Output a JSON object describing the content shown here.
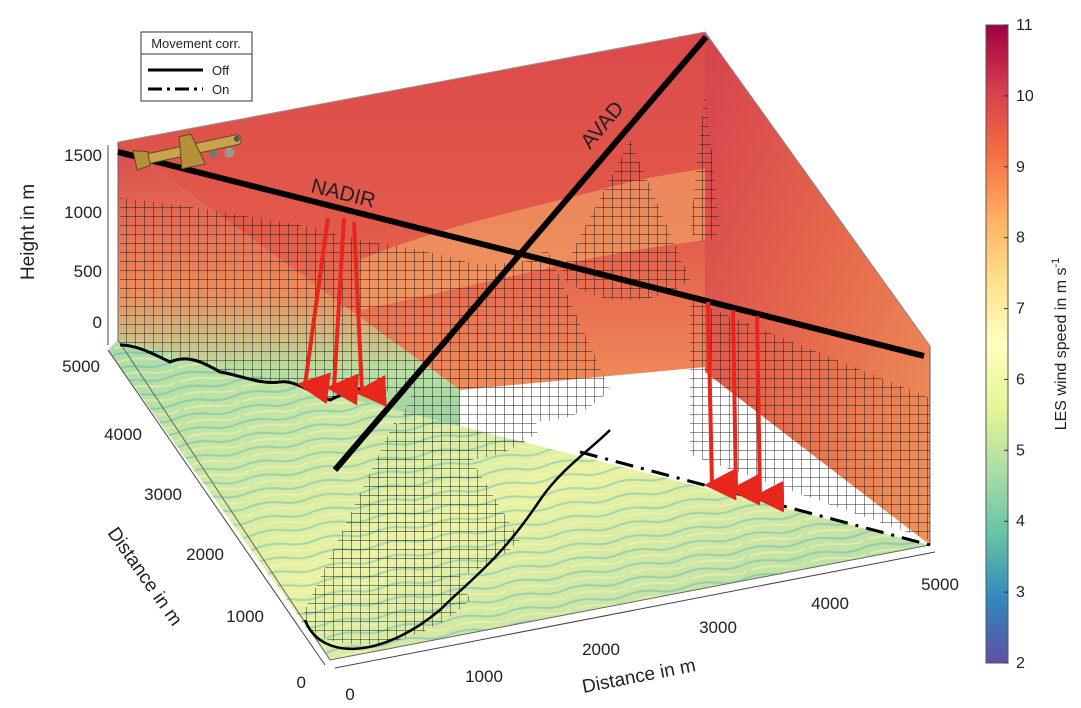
{
  "chart_data": {
    "type": "3d-surface",
    "legend": {
      "title": "Movement corr.",
      "entries": [
        {
          "label": "Off",
          "style": "solid"
        },
        {
          "label": "On",
          "style": "dash-dot"
        }
      ],
      "placement": "top-left"
    },
    "beam_labels": [
      "NADIR",
      "AVAD"
    ],
    "z_axis": {
      "label": "Height in m",
      "ticks": [
        "0",
        "500",
        "1000",
        "1500"
      ],
      "range": [
        0,
        1700
      ]
    },
    "y_axis": {
      "label": "Distance in m",
      "ticks": [
        "0",
        "1000",
        "2000",
        "3000",
        "4000",
        "5000"
      ],
      "range": [
        0,
        5000
      ]
    },
    "x_axis": {
      "label": "Distance in m",
      "ticks": [
        "0",
        "1000",
        "2000",
        "3000",
        "4000",
        "5000"
      ],
      "range": [
        0,
        5000
      ]
    },
    "colorbar": {
      "label": "LES wind speed in m s",
      "label_superscript": "-1",
      "ticks": [
        "2",
        "3",
        "4",
        "5",
        "6",
        "7",
        "8",
        "9",
        "10",
        "11"
      ],
      "range": [
        2,
        11
      ],
      "colormap": [
        "#5e4fa2",
        "#3288bd",
        "#66c2a5",
        "#abdda4",
        "#e6f598",
        "#ffffbf",
        "#fee08b",
        "#fdae61",
        "#f46d43",
        "#d53e4f",
        "#9e0142"
      ]
    },
    "colors": {
      "beam_arrows": "#e8261c",
      "flight_track": "#000000",
      "mesh": "#111111"
    }
  }
}
